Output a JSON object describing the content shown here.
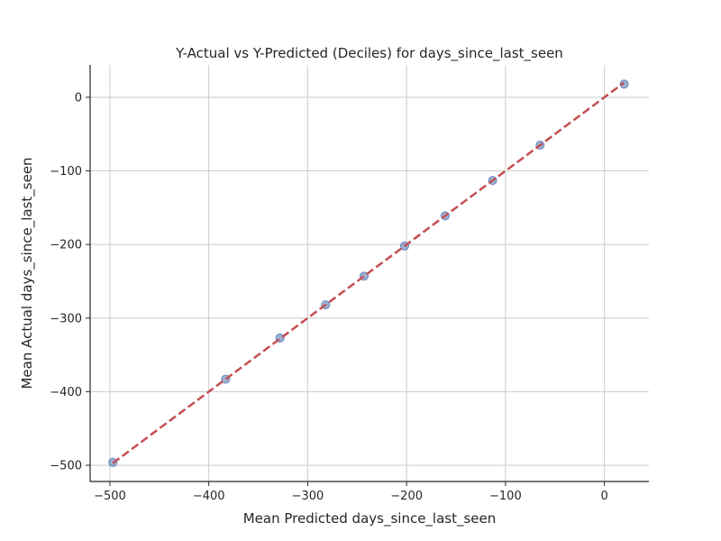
{
  "chart_data": {
    "type": "scatter",
    "title": "Y-Actual vs Y-Predicted (Deciles) for days_since_last_seen",
    "xlabel": "Mean Predicted days_since_last_seen",
    "ylabel": "Mean Actual days_since_last_seen",
    "xlim": [
      -520,
      45
    ],
    "ylim": [
      -522,
      44
    ],
    "x_ticks": [
      -500,
      -400,
      -300,
      -200,
      -100,
      0
    ],
    "y_ticks": [
      0,
      -100,
      -200,
      -300,
      -400,
      -500
    ],
    "x_tick_labels": [
      "−500",
      "−400",
      "−300",
      "−200",
      "−100",
      "0"
    ],
    "y_tick_labels": [
      "0",
      "−100",
      "−200",
      "−300",
      "−400",
      "−500"
    ],
    "grid": true,
    "series": [
      {
        "type": "scatter",
        "color": "#4c72b0",
        "x": [
          -497,
          -383,
          -328,
          -282,
          -243,
          -202,
          -161,
          -113,
          -65,
          20
        ],
        "y": [
          -496,
          -383,
          -327,
          -282,
          -243,
          -202,
          -161,
          -113,
          -65,
          18
        ]
      },
      {
        "type": "line",
        "style": "dashed",
        "color": "#c44e52",
        "x": [
          -497,
          20
        ],
        "y": [
          -497,
          20
        ]
      }
    ]
  }
}
